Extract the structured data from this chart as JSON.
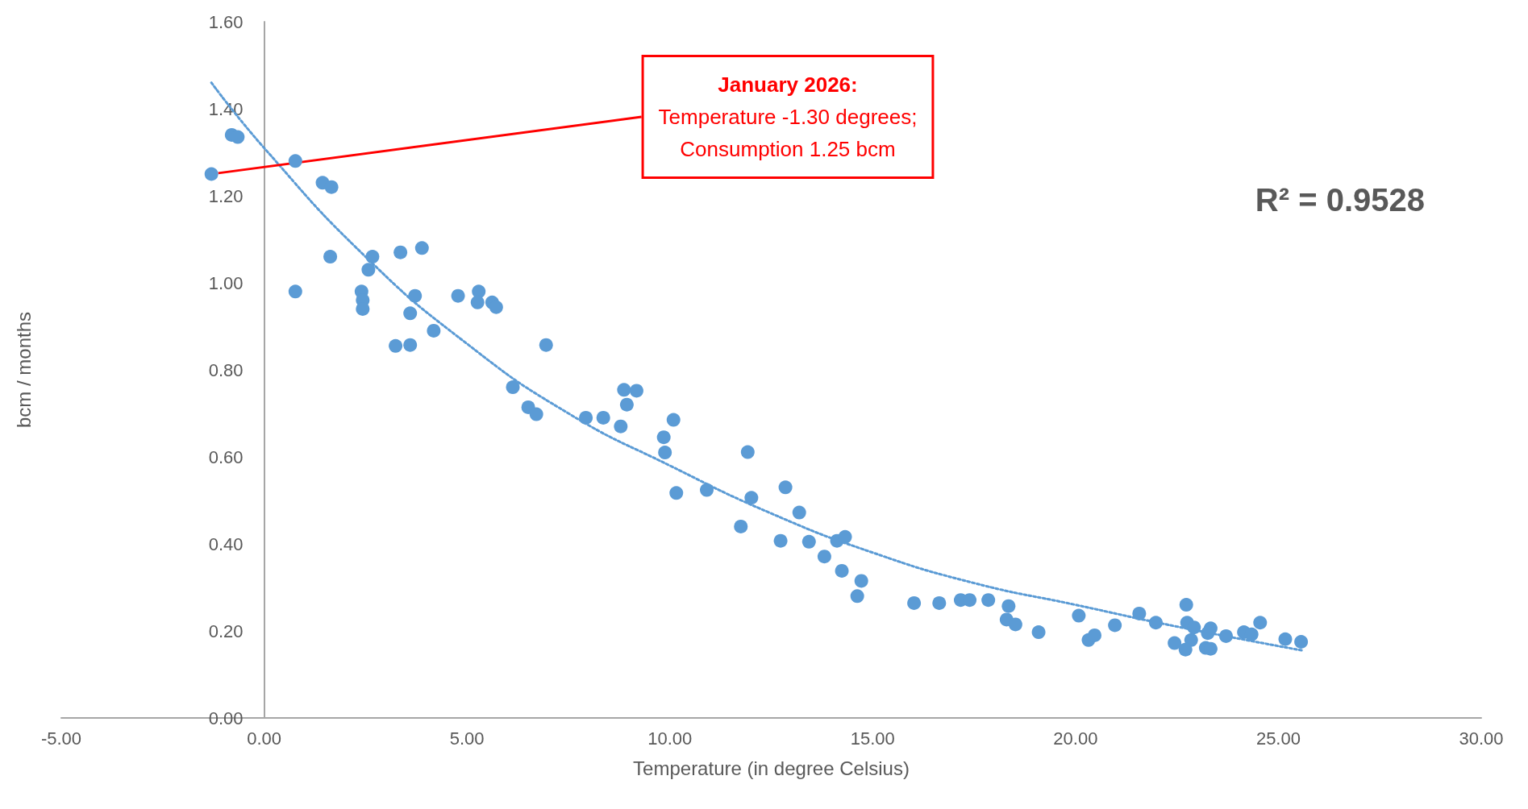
{
  "chart_data": {
    "type": "scatter",
    "xlabel": "Temperature (in degree Celsius)",
    "ylabel": "bcm / months",
    "xlim": [
      -5,
      30
    ],
    "xticks": [
      {
        "value": -5,
        "label": "-5.00"
      },
      {
        "value": 0,
        "label": "0.00"
      },
      {
        "value": 5,
        "label": "5.00"
      },
      {
        "value": 10,
        "label": "10.00"
      },
      {
        "value": 15,
        "label": "15.00"
      },
      {
        "value": 20,
        "label": "20.00"
      },
      {
        "value": 25,
        "label": "25.00"
      },
      {
        "value": 30,
        "label": "30.00"
      }
    ],
    "ylim": [
      0,
      1.6
    ],
    "yticks": [
      {
        "value": 0,
        "label": "0.00"
      },
      {
        "value": 0.2,
        "label": "0.20"
      },
      {
        "value": 0.4,
        "label": "0.40"
      },
      {
        "value": 0.6,
        "label": "0.60"
      },
      {
        "value": 0.8,
        "label": "0.80"
      },
      {
        "value": 1,
        "label": "1.00"
      },
      {
        "value": 1.2,
        "label": "1.20"
      },
      {
        "value": 1.4,
        "label": "1.40"
      },
      {
        "value": 1.6,
        "label": "1.60"
      }
    ],
    "marker": "circle",
    "series": [
      {
        "color": "#5b9bd5",
        "x": [
          -1.3,
          -0.8,
          -0.65,
          0.77,
          1.44,
          1.66,
          0.77,
          1.63,
          2.67,
          2.57,
          2.4,
          2.43,
          2.43,
          3.36,
          3.89,
          3.72,
          3.6,
          3.24,
          3.6,
          4.18,
          4.78,
          5.29,
          5.26,
          5.62,
          5.72,
          6.95,
          6.13,
          6.51,
          6.71,
          7.93,
          8.36,
          8.79,
          8.87,
          9.18,
          8.94,
          9.85,
          9.88,
          10.09,
          10.16,
          10.91,
          11.92,
          12.01,
          11.75,
          12.85,
          13.19,
          12.73,
          13.43,
          13.81,
          14.12,
          14.32,
          14.24,
          14.72,
          14.62,
          16.02,
          16.64,
          17.17,
          17.39,
          17.85,
          18.35,
          18.3,
          18.52,
          19.09,
          20.08,
          20.32,
          20.47,
          20.97,
          21.57,
          21.98,
          22.44,
          22.73,
          22.75,
          22.92,
          22.85,
          22.71,
          23.21,
          23.33,
          23.33,
          23.26,
          23.71,
          24.15,
          24.34,
          24.55,
          25.17,
          25.56
        ],
        "values": [
          1.25,
          1.34,
          1.335,
          1.28,
          1.23,
          1.22,
          0.98,
          1.06,
          1.06,
          1.03,
          0.98,
          0.96,
          0.94,
          1.07,
          1.08,
          0.97,
          0.93,
          0.855,
          0.857,
          0.89,
          0.97,
          0.98,
          0.955,
          0.955,
          0.944,
          0.857,
          0.76,
          0.714,
          0.698,
          0.69,
          0.69,
          0.67,
          0.754,
          0.752,
          0.72,
          0.645,
          0.61,
          0.685,
          0.517,
          0.524,
          0.611,
          0.506,
          0.44,
          0.53,
          0.472,
          0.407,
          0.405,
          0.371,
          0.407,
          0.416,
          0.338,
          0.315,
          0.28,
          0.264,
          0.264,
          0.271,
          0.271,
          0.271,
          0.257,
          0.226,
          0.215,
          0.197,
          0.235,
          0.179,
          0.19,
          0.213,
          0.24,
          0.219,
          0.172,
          0.26,
          0.219,
          0.208,
          0.179,
          0.157,
          0.161,
          0.159,
          0.206,
          0.195,
          0.188,
          0.197,
          0.192,
          0.219,
          0.181,
          0.175
        ]
      },
      {
        "type": "line",
        "color": "#5b9bd5",
        "line_style": "dotted",
        "marker": "none",
        "x": [
          -1.3,
          0,
          2.5,
          5,
          7.5,
          10,
          12.5,
          15,
          17.5,
          20,
          22.5,
          25.6
        ],
        "values": [
          1.46,
          1.31,
          1.06,
          0.86,
          0.7,
          0.58,
          0.47,
          0.38,
          0.31,
          0.26,
          0.21,
          0.155
        ]
      }
    ],
    "annotations": [
      {
        "text": "January 2026:\nTemperature -1.30 degrees;\nConsumption 1.25 bcm",
        "x": -1.3,
        "y": 1.25
      },
      "R² = 0.9528"
    ]
  }
}
